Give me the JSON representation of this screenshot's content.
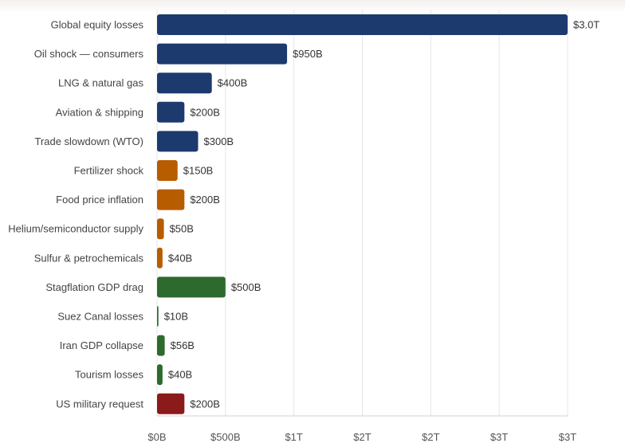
{
  "chart_data": {
    "type": "bar",
    "orientation": "horizontal",
    "title": "",
    "xlabel": "",
    "ylabel": "",
    "xlim": [
      0,
      3000
    ],
    "units": "billions USD",
    "categories": [
      "Global equity losses",
      "Oil shock — consumers",
      "LNG & natural gas",
      "Aviation & shipping",
      "Trade slowdown (WTO)",
      "Fertilizer shock",
      "Food price inflation",
      "Helium/semiconductor supply",
      "Sulfur & petrochemicals",
      "Stagflation GDP drag",
      "Suez Canal losses",
      "Iran GDP collapse",
      "Tourism losses",
      "US military request"
    ],
    "values": [
      3000,
      950,
      400,
      200,
      300,
      150,
      200,
      50,
      40,
      500,
      10,
      56,
      40,
      200
    ],
    "value_labels": [
      "$3.0T",
      "$950B",
      "$400B",
      "$200B",
      "$300B",
      "$150B",
      "$200B",
      "$50B",
      "$40B",
      "$500B",
      "$10B",
      "$56B",
      "$40B",
      "$200B"
    ],
    "colors": [
      "#1c3a6e",
      "#1c3a6e",
      "#1c3a6e",
      "#1c3a6e",
      "#1c3a6e",
      "#b85c00",
      "#b85c00",
      "#b85c00",
      "#b85c00",
      "#2d6a2d",
      "#2d6a2d",
      "#2d6a2d",
      "#2d6a2d",
      "#8b1a1a"
    ],
    "ticks": [
      0,
      500,
      1000,
      1500,
      2000,
      2500,
      3000
    ],
    "tick_labels": [
      "$0B",
      "$500B",
      "$1T",
      "$2T",
      "$2T",
      "$3T",
      "$3T"
    ],
    "grid": true,
    "legend": "none"
  }
}
